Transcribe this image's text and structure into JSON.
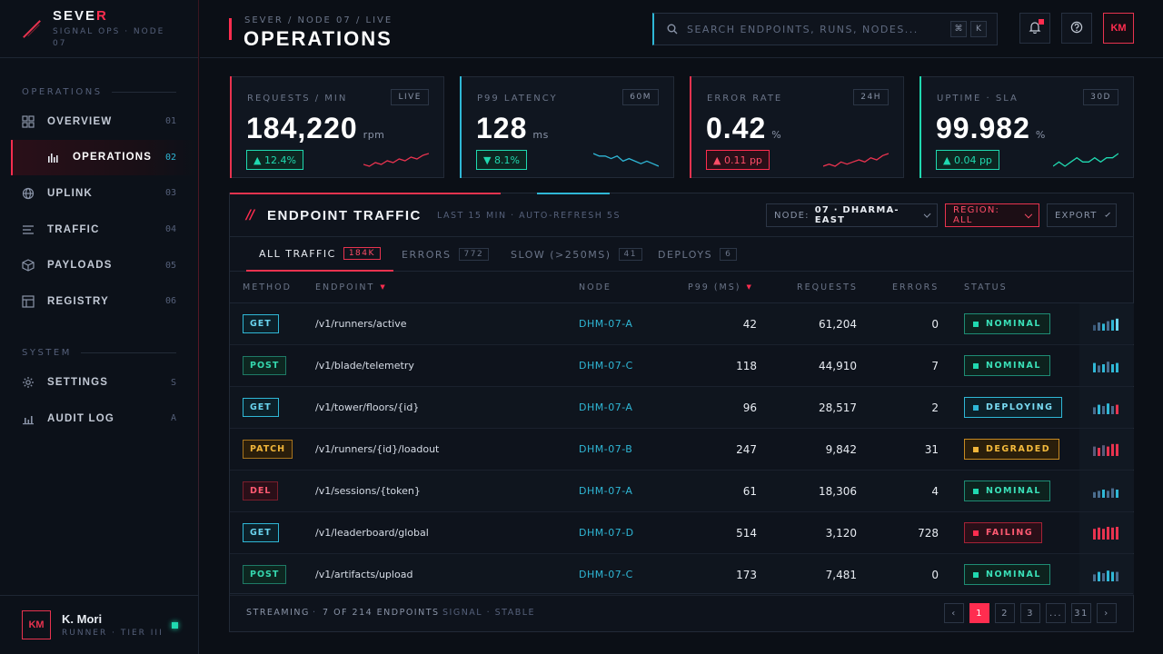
{
  "brand": {
    "name_a": "SEVE",
    "name_b": "R",
    "subtitle": "SIGNAL OPS · NODE 07"
  },
  "sidebar": {
    "section_ops": "OPERATIONS",
    "section_system": "SYSTEM",
    "items": [
      {
        "label": "OVERVIEW",
        "num": "01",
        "icon": "grid-icon"
      },
      {
        "label": "OPERATIONS",
        "num": "02",
        "icon": "bar-chart-icon"
      },
      {
        "label": "UPLINK",
        "num": "03",
        "icon": "globe-icon"
      },
      {
        "label": "TRAFFIC",
        "num": "04",
        "icon": "sliders-icon"
      },
      {
        "label": "PAYLOADS",
        "num": "05",
        "icon": "cube-icon"
      },
      {
        "label": "REGISTRY",
        "num": "06",
        "icon": "table-icon"
      }
    ],
    "system_items": [
      {
        "label": "SETTINGS",
        "num": "S",
        "icon": "gear-icon"
      },
      {
        "label": "AUDIT LOG",
        "num": "A",
        "icon": "chart-icon"
      }
    ],
    "user": {
      "initials": "KM",
      "name": "K. Mori",
      "role": "RUNNER · TIER III"
    }
  },
  "header": {
    "breadcrumb": "SEVER / NODE 07 / LIVE",
    "title": "OPERATIONS",
    "search_placeholder": "SEARCH ENDPOINTS, RUNS, NODES...",
    "kbd1": "⌘",
    "kbd2": "K",
    "avatar": "KM"
  },
  "kpis": [
    {
      "label": "REQUESTS / MIN",
      "tag": "LIVE",
      "value": "184,220",
      "unit": "rpm",
      "delta": "▲ 12.4%",
      "tone": "up",
      "edge": "#e8334f",
      "spark_color": "#e8334f"
    },
    {
      "label": "P99 LATENCY",
      "tag": "60M",
      "value": "128",
      "unit": "ms",
      "delta": "▼ 8.1%",
      "tone": "up",
      "edge": "#2fb7d6",
      "spark_color": "#2fb7d6"
    },
    {
      "label": "ERROR RATE",
      "tag": "24H",
      "value": "0.42",
      "unit": "%",
      "delta": "▲ 0.11 pp",
      "tone": "bad",
      "edge": "#e8334f",
      "spark_color": "#e8334f"
    },
    {
      "label": "UPTIME · SLA",
      "tag": "30D",
      "value": "99.982",
      "unit": "%",
      "delta": "▲ 0.04 pp",
      "tone": "up",
      "edge": "#20d9b0",
      "spark_color": "#20d9b0"
    }
  ],
  "panel": {
    "title": "ENDPOINT TRAFFIC",
    "subtitle": "LAST 15 MIN · AUTO-REFRESH 5S",
    "node_label": "NODE:",
    "node_value": "07 · DHARMA-EAST",
    "region": "REGION: ALL",
    "export": "EXPORT",
    "tabs": [
      {
        "label": "ALL TRAFFIC",
        "count": "184K"
      },
      {
        "label": "ERRORS",
        "count": "772"
      },
      {
        "label": "SLOW (>250MS)",
        "count": "41"
      },
      {
        "label": "DEPLOYS",
        "count": "6"
      }
    ],
    "columns": {
      "method": "METHOD",
      "endpoint": "ENDPOINT",
      "node": "NODE",
      "p99": "P99 (MS)",
      "requests": "REQUESTS",
      "errors": "ERRORS",
      "status": "STATUS"
    },
    "rows": [
      {
        "method": "GET",
        "endpoint": "/v1/runners/active",
        "node": "DHM-07-A",
        "p99": "42",
        "requests": "61,204",
        "errors": "0",
        "status": "NOMINAL"
      },
      {
        "method": "POST",
        "endpoint": "/v1/blade/telemetry",
        "node": "DHM-07-C",
        "p99": "118",
        "requests": "44,910",
        "errors": "7",
        "status": "NOMINAL"
      },
      {
        "method": "GET",
        "endpoint": "/v1/tower/floors/{id}",
        "node": "DHM-07-A",
        "p99": "96",
        "requests": "28,517",
        "errors": "2",
        "status": "DEPLOYING"
      },
      {
        "method": "PATCH",
        "endpoint": "/v1/runners/{id}/loadout",
        "node": "DHM-07-B",
        "p99": "247",
        "requests": "9,842",
        "errors": "31",
        "status": "DEGRADED"
      },
      {
        "method": "DEL",
        "endpoint": "/v1/sessions/{token}",
        "node": "DHM-07-A",
        "p99": "61",
        "requests": "18,306",
        "errors": "4",
        "status": "NOMINAL"
      },
      {
        "method": "GET",
        "endpoint": "/v1/leaderboard/global",
        "node": "DHM-07-D",
        "p99": "514",
        "requests": "3,120",
        "errors": "728",
        "status": "FAILING"
      },
      {
        "method": "POST",
        "endpoint": "/v1/artifacts/upload",
        "node": "DHM-07-C",
        "p99": "173",
        "requests": "7,481",
        "errors": "0",
        "status": "NOMINAL"
      }
    ],
    "footer": {
      "streaming": "STREAMING",
      "dot": "·",
      "count": "7 OF 214 ENDPOINTS",
      "signal": "SIGNAL · STABLE"
    },
    "pagination": [
      "‹",
      "1",
      "2",
      "3",
      "...",
      "31",
      "›"
    ]
  },
  "colors": {
    "accent": "#ff2d4f",
    "cyan": "#2fb7d6",
    "teal": "#20d9b0",
    "amber": "#f0b53a"
  }
}
